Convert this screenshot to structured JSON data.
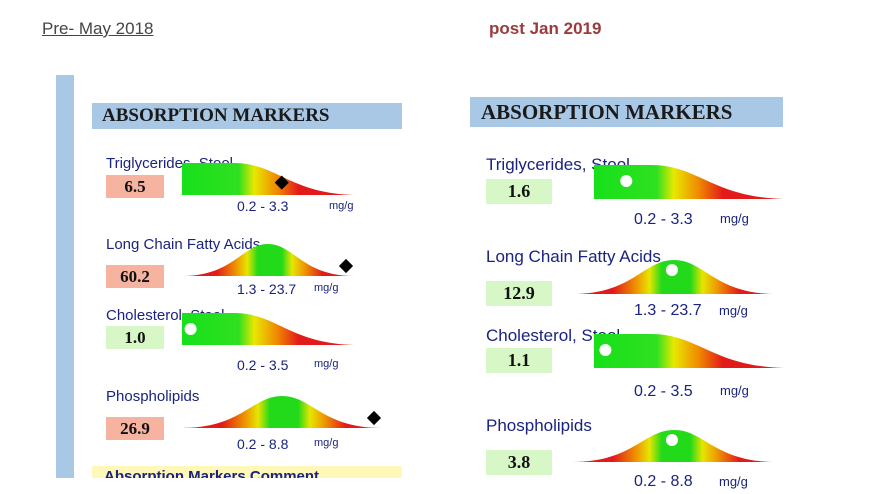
{
  "captions": {
    "left": "Pre- May 2018",
    "right": "post Jan 2019"
  },
  "header": "ABSORPTION MARKERS",
  "comment_label": "Absorption Markers Comment",
  "unit": "mg/g",
  "colors": {
    "high": "#f5b3a0",
    "normal": "#d7f7c7",
    "header": "#a9c8e6",
    "comment": "#fff8b8",
    "label": "#1a237e"
  },
  "before": {
    "markers": [
      {
        "name": "Triglycerides, Stool",
        "value": "6.5",
        "status": "high",
        "range": "0.2 - 3.3",
        "shape": "decay",
        "indicator": "diamond",
        "pos": 0.58
      },
      {
        "name": "Long Chain Fatty Acids",
        "value": "60.2",
        "status": "high",
        "range": "1.3 - 23.7",
        "shape": "bell",
        "indicator": "diamond",
        "pos": 0.96
      },
      {
        "name": "Cholesterol, Stool",
        "value": "1.0",
        "status": "normal",
        "range": "0.2 - 3.5",
        "shape": "decay",
        "indicator": "circle",
        "pos": 0.05
      },
      {
        "name": "Phospholipids",
        "value": "26.9",
        "status": "high",
        "range": "0.2 - 8.8",
        "shape": "bell",
        "indicator": "diamond",
        "pos": 0.96
      }
    ]
  },
  "after": {
    "markers": [
      {
        "name": "Triglycerides, Stool",
        "value": "1.6",
        "status": "normal",
        "range": "0.2 - 3.3",
        "shape": "decay",
        "indicator": "circle",
        "pos": 0.17
      },
      {
        "name": "Long Chain Fatty Acids",
        "value": "12.9",
        "status": "normal",
        "range": "1.3 - 23.7",
        "shape": "bell",
        "indicator": "circle",
        "pos": 0.49
      },
      {
        "name": "Cholesterol, Stool",
        "value": "1.1",
        "status": "normal",
        "range": "0.2 - 3.5",
        "shape": "decay",
        "indicator": "circle",
        "pos": 0.06
      },
      {
        "name": "Phospholipids",
        "value": "3.8",
        "status": "normal",
        "range": "0.2 - 8.8",
        "shape": "bell",
        "indicator": "circle",
        "pos": 0.49
      }
    ]
  }
}
